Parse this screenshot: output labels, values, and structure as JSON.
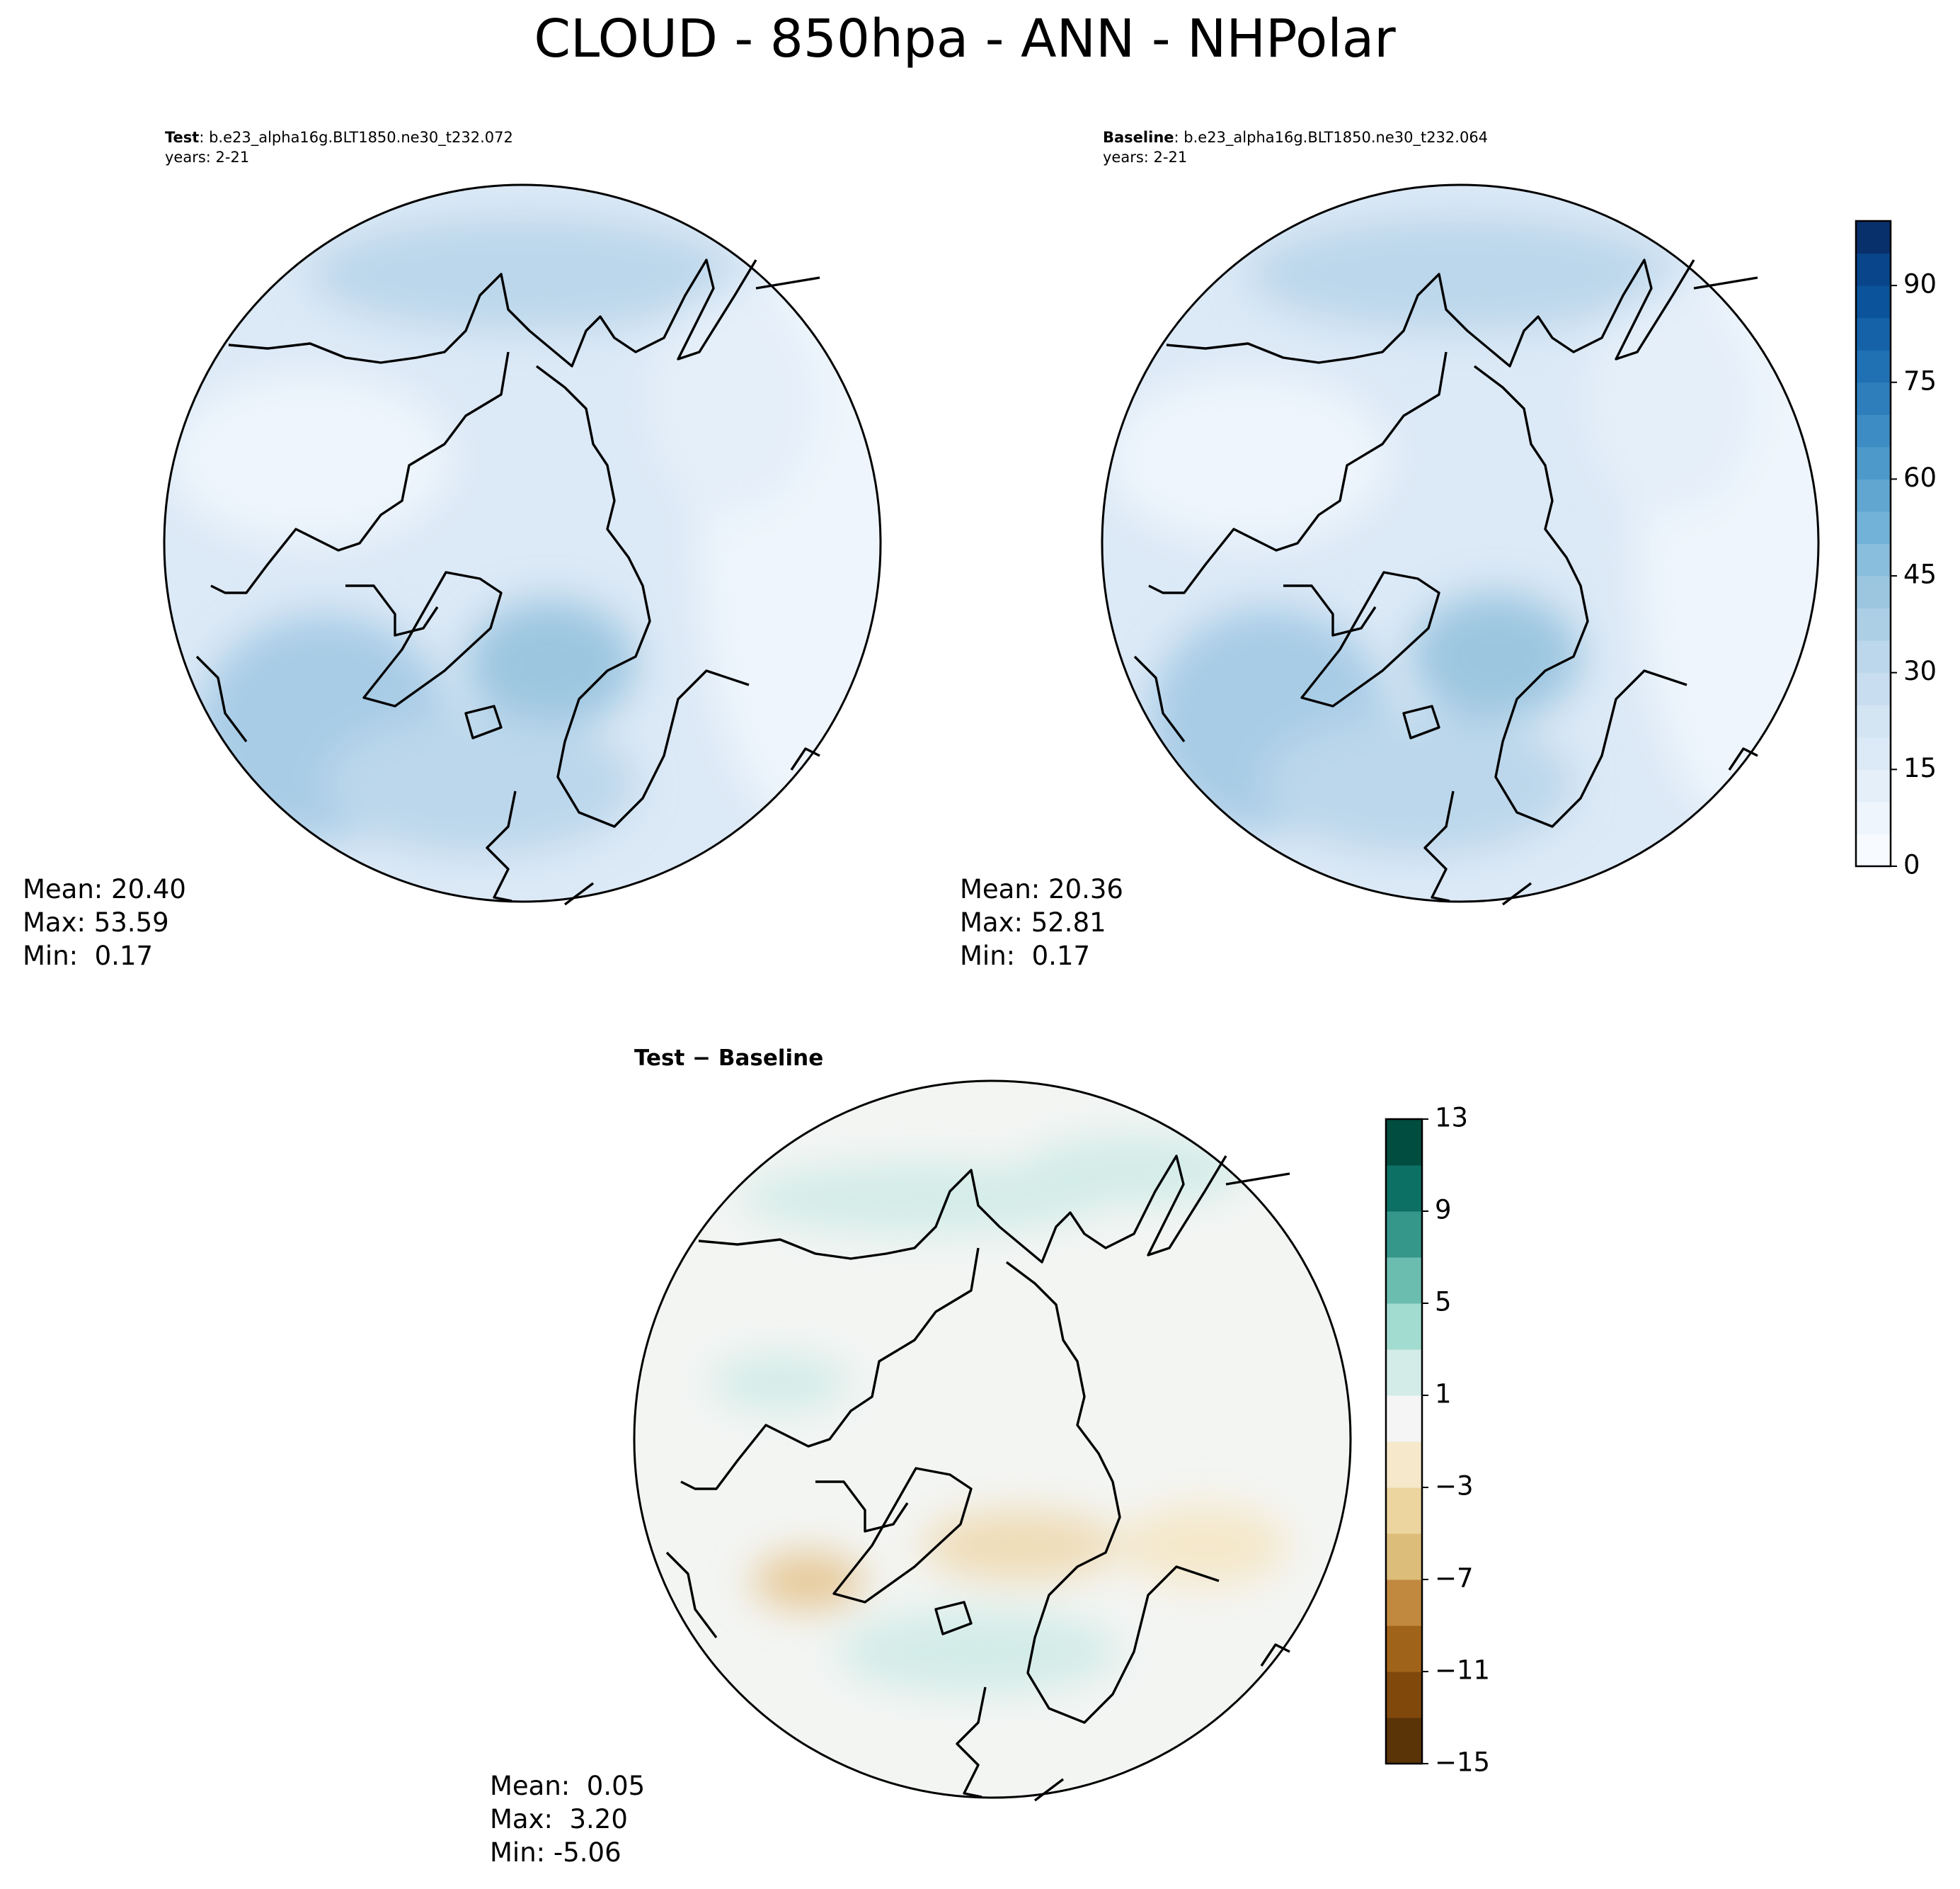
{
  "title": "CLOUD - 850hpa - ANN - NHPolar",
  "panels": [
    {
      "label": "Test",
      "case": ": b.e23_alpha16g.BLT1850.ne30_t232.072",
      "years": "years: 2-21",
      "stats": [
        "Mean: 20.40",
        "Max: 53.59",
        "Min:  0.17"
      ]
    },
    {
      "label": "Baseline",
      "case": ": b.e23_alpha16g.BLT1850.ne30_t232.064",
      "years": "years: 2-21",
      "stats": [
        "Mean: 20.36",
        "Max: 52.81",
        "Min:  0.17"
      ]
    },
    {
      "label": "Test − Baseline",
      "stats": [
        "Mean:  0.05",
        "Max:  3.20",
        "Min: -5.06"
      ]
    }
  ],
  "colorbars": [
    {
      "lim": [
        0,
        100
      ],
      "ticks": [
        0,
        15,
        30,
        45,
        60,
        75,
        90
      ],
      "colors": [
        "#f7fbff",
        "#eef5fc",
        "#e5eff9",
        "#dce9f6",
        "#d3e4f3",
        "#c9ddf0",
        "#bcd7eb",
        "#accfe5",
        "#9cc6e0",
        "#89bedc",
        "#73b2d8",
        "#60a6d1",
        "#4d99ca",
        "#3d8cc3",
        "#2e7ebc",
        "#2070b4",
        "#1562a9",
        "#0b539a",
        "#08458a",
        "#08306b"
      ]
    },
    {
      "lim": [
        -15,
        13
      ],
      "ticks": [
        {
          "value": -15,
          "label": "−15"
        },
        {
          "value": -11,
          "label": "−11"
        },
        {
          "value": -7,
          "label": "−7"
        },
        {
          "value": -3,
          "label": "−3"
        },
        1,
        5,
        9,
        13
      ],
      "colors": [
        "#5a3407",
        "#80480b",
        "#a0631a",
        "#c1893f",
        "#dcbd7a",
        "#edd59f",
        "#f5e8cb",
        "#f4f5f4",
        "#d3ece8",
        "#a2dcd0",
        "#6bbdaf",
        "#35968a",
        "#0d7064",
        "#014d40"
      ]
    }
  ]
}
